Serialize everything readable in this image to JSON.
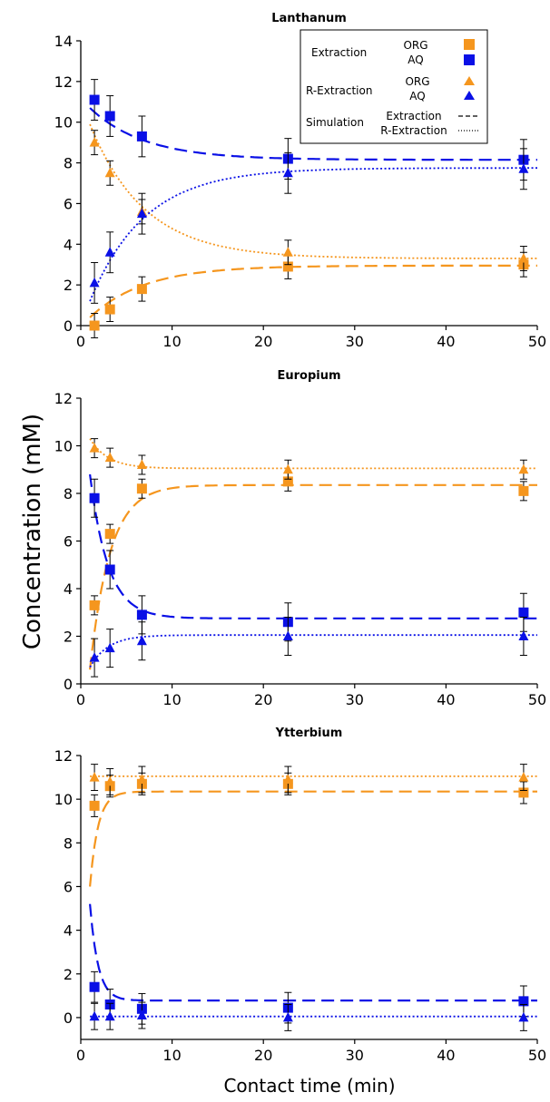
{
  "figure": {
    "ylabel": "Concentration (mM)",
    "xlabel": "Contact time (min)"
  },
  "legend": {
    "extraction": "Extraction",
    "r_extraction": "R-Extraction",
    "simulation": "Simulation",
    "org": "ORG",
    "aq": "AQ",
    "sim_extraction": "Extraction",
    "sim_r_extraction": "R-Extraction",
    "placement": "top-right (Lanthanum panel)"
  },
  "colors": {
    "org": "#f5961e",
    "aq": "#0a10e6",
    "axis": "#000000",
    "legend_line": "#000000"
  },
  "chart_data": [
    {
      "type": "scatter",
      "title": "Lanthanum",
      "xlabel": "",
      "ylabel": "",
      "xlim": [
        0,
        50
      ],
      "ylim": [
        0,
        14
      ],
      "xticks": [
        0,
        10,
        20,
        30,
        40,
        50
      ],
      "yticks": [
        0,
        2,
        4,
        6,
        8,
        10,
        12,
        14
      ],
      "x": [
        1.5,
        3.2,
        6.7,
        22.7,
        48.5
      ],
      "series": [
        {
          "marker": "square",
          "color": "#f5961e",
          "values": [
            0.0,
            0.8,
            1.8,
            2.9,
            3.0
          ],
          "errors": [
            0.6,
            0.6,
            0.6,
            0.6,
            0.6
          ]
        },
        {
          "marker": "square",
          "color": "#0a10e6",
          "values": [
            11.1,
            10.3,
            9.3,
            8.2,
            8.15
          ],
          "errors": [
            1.0,
            1.0,
            1.0,
            1.0,
            1.0
          ]
        },
        {
          "marker": "triangle",
          "color": "#f5961e",
          "values": [
            9.0,
            7.5,
            5.6,
            3.6,
            3.3
          ],
          "errors": [
            0.6,
            0.6,
            0.6,
            0.6,
            0.6
          ]
        },
        {
          "marker": "triangle",
          "color": "#0a10e6",
          "values": [
            2.1,
            3.6,
            5.5,
            7.5,
            7.7
          ],
          "errors": [
            1.0,
            1.0,
            1.0,
            1.0,
            1.0
          ]
        }
      ],
      "curves": [
        {
          "style": "dashed",
          "color": "#f5961e",
          "start": 0.4,
          "end": 2.95,
          "tau": 6.0
        },
        {
          "style": "dashed",
          "color": "#0a10e6",
          "start": 10.7,
          "end": 8.15,
          "tau": 6.0
        },
        {
          "style": "dotted",
          "color": "#f5961e",
          "start": 9.9,
          "end": 3.3,
          "tau": 6.0
        },
        {
          "style": "dotted",
          "color": "#0a10e6",
          "start": 1.2,
          "end": 7.75,
          "tau": 6.0
        }
      ]
    },
    {
      "type": "scatter",
      "title": "Europium",
      "xlabel": "",
      "ylabel": "",
      "xlim": [
        0,
        50
      ],
      "ylim": [
        0,
        12
      ],
      "xticks": [
        0,
        10,
        20,
        30,
        40,
        50
      ],
      "yticks": [
        0,
        2,
        4,
        6,
        8,
        10,
        12
      ],
      "x": [
        1.5,
        3.2,
        6.7,
        22.7,
        48.5
      ],
      "series": [
        {
          "marker": "square",
          "color": "#f5961e",
          "values": [
            3.3,
            6.3,
            8.2,
            8.5,
            8.1
          ],
          "errors": [
            0.4,
            0.4,
            0.4,
            0.4,
            0.4
          ]
        },
        {
          "marker": "square",
          "color": "#0a10e6",
          "values": [
            7.8,
            4.8,
            2.9,
            2.6,
            3.0
          ],
          "errors": [
            0.8,
            0.8,
            0.8,
            0.8,
            0.8
          ]
        },
        {
          "marker": "triangle",
          "color": "#f5961e",
          "values": [
            9.9,
            9.5,
            9.2,
            9.0,
            9.0
          ],
          "errors": [
            0.4,
            0.4,
            0.4,
            0.4,
            0.4
          ]
        },
        {
          "marker": "triangle",
          "color": "#0a10e6",
          "values": [
            1.1,
            1.5,
            1.8,
            2.0,
            2.0
          ],
          "errors": [
            0.8,
            0.8,
            0.8,
            0.8,
            0.8
          ]
        }
      ],
      "curves": [
        {
          "style": "dashed",
          "color": "#f5961e",
          "start": 0.6,
          "end": 8.35,
          "tau": 2.2
        },
        {
          "style": "dashed",
          "color": "#0a10e6",
          "start": 8.8,
          "end": 2.75,
          "tau": 2.0
        },
        {
          "style": "dotted",
          "color": "#f5961e",
          "start": 10.3,
          "end": 9.05,
          "tau": 2.0
        },
        {
          "style": "dotted",
          "color": "#0a10e6",
          "start": 0.7,
          "end": 2.05,
          "tau": 2.0
        }
      ]
    },
    {
      "type": "scatter",
      "title": "Ytterbium",
      "xlabel": "Contact time (min)",
      "ylabel": "",
      "xlim": [
        0,
        50
      ],
      "ylim": [
        -1,
        12
      ],
      "xticks": [
        0,
        10,
        20,
        30,
        40,
        50
      ],
      "yticks": [
        0,
        2,
        4,
        6,
        8,
        10,
        12
      ],
      "x": [
        1.5,
        3.2,
        6.7,
        22.7,
        48.5
      ],
      "series": [
        {
          "marker": "square",
          "color": "#f5961e",
          "values": [
            9.7,
            10.6,
            10.7,
            10.7,
            10.3
          ],
          "errors": [
            0.5,
            0.5,
            0.5,
            0.5,
            0.5
          ]
        },
        {
          "marker": "square",
          "color": "#0a10e6",
          "values": [
            1.4,
            0.6,
            0.4,
            0.45,
            0.75
          ],
          "errors": [
            0.7,
            0.7,
            0.7,
            0.7,
            0.7
          ]
        },
        {
          "marker": "triangle",
          "color": "#f5961e",
          "values": [
            11.0,
            10.8,
            10.9,
            10.9,
            11.0
          ],
          "errors": [
            0.6,
            0.6,
            0.6,
            0.6,
            0.6
          ]
        },
        {
          "marker": "triangle",
          "color": "#0a10e6",
          "values": [
            0.05,
            0.05,
            0.1,
            0.0,
            0.0
          ],
          "errors": [
            0.6,
            0.6,
            0.6,
            0.6,
            0.6
          ]
        }
      ],
      "curves": [
        {
          "style": "dashed",
          "color": "#f5961e",
          "start": 6.0,
          "end": 10.35,
          "tau": 0.9
        },
        {
          "style": "dashed",
          "color": "#0a10e6",
          "start": 5.2,
          "end": 0.78,
          "tau": 0.9
        },
        {
          "style": "dotted",
          "color": "#f5961e",
          "start": 11.05,
          "end": 11.05,
          "tau": 1.0
        },
        {
          "style": "dotted",
          "color": "#0a10e6",
          "start": 0.05,
          "end": 0.05,
          "tau": 1.0
        }
      ]
    }
  ]
}
